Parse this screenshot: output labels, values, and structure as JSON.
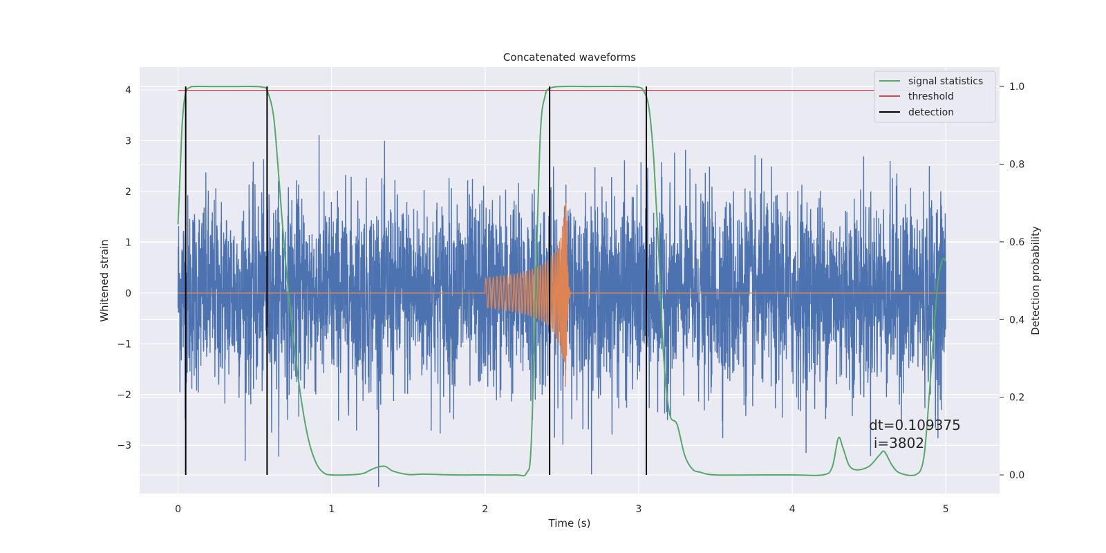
{
  "chart_data": {
    "type": "line",
    "title": "Concatenated waveforms",
    "xlabel": "Time (s)",
    "ylabel": "Whitened strain",
    "ylabel_right": "Detection probability",
    "xlim": [
      -0.25,
      5.35
    ],
    "ylim": [
      -3.95,
      4.45
    ],
    "ylim_right": [
      -0.048,
      1.05
    ],
    "x_ticks": [
      0,
      1,
      2,
      3,
      4,
      5
    ],
    "y_ticks": [
      -3,
      -2,
      -1,
      0,
      1,
      2,
      3,
      4
    ],
    "y_ticks_right": [
      0.0,
      0.2,
      0.4,
      0.6,
      0.8,
      1.0
    ],
    "y_ticks_right_labels": [
      "0.0",
      "0.2",
      "0.4",
      "0.6",
      "0.8",
      "1.0"
    ],
    "grid": true,
    "legend": {
      "placement": "top-right",
      "entries": [
        {
          "name": "signal statistics",
          "color": "#55a868"
        },
        {
          "name": "threshold",
          "color": "#c44e52"
        },
        {
          "name": "detection",
          "color": "#000000"
        }
      ]
    },
    "series": [
      {
        "name": "whitened strain",
        "axis": "left",
        "color": "#4c72b0",
        "x_range": [
          0,
          5
        ],
        "typical_abs_amplitude": 1.5,
        "peak_amplitude": 4.0
      },
      {
        "name": "injected waveform",
        "axis": "left",
        "color": "#dd8452",
        "chirp_start": 2.0,
        "chirp_merger": 2.53,
        "chirp_end": 2.56,
        "start_amplitude": 0.3,
        "peak_amplitude": 1.9
      },
      {
        "name": "signal statistics",
        "axis": "right",
        "color": "#55a868",
        "x": [
          0,
          0.01,
          0.02,
          0.03,
          0.05,
          0.08,
          0.1,
          0.2,
          0.3,
          0.4,
          0.5,
          0.55,
          0.58,
          0.62,
          0.65,
          0.7,
          0.75,
          0.8,
          0.85,
          0.9,
          0.95,
          1.0,
          1.1,
          1.2,
          1.25,
          1.3,
          1.35,
          1.4,
          1.5,
          1.6,
          1.8,
          2.0,
          2.2,
          2.27,
          2.3,
          2.33,
          2.36,
          2.39,
          2.42,
          2.5,
          2.7,
          2.9,
          3.0,
          3.03,
          3.06,
          3.08,
          3.1,
          3.13,
          3.16,
          3.2,
          3.25,
          3.3,
          3.35,
          3.4,
          3.5,
          3.8,
          4.0,
          4.2,
          4.26,
          4.3,
          4.33,
          4.37,
          4.42,
          4.5,
          4.57,
          4.6,
          4.65,
          4.7,
          4.8,
          4.85,
          4.88,
          4.92,
          4.95,
          4.98,
          5.0
        ],
        "y": [
          0.645,
          0.74,
          0.84,
          0.92,
          0.985,
          0.998,
          1.0,
          1.0,
          1.0,
          1.0,
          1.0,
          0.998,
          0.99,
          0.93,
          0.8,
          0.55,
          0.36,
          0.2,
          0.09,
          0.03,
          0.005,
          0.0,
          0.0,
          0.003,
          0.012,
          0.02,
          0.022,
          0.01,
          0.001,
          0.002,
          0.0,
          0.0,
          0.0,
          0.005,
          0.08,
          0.5,
          0.88,
          0.975,
          0.995,
          1.0,
          1.0,
          1.0,
          0.998,
          0.99,
          0.96,
          0.9,
          0.8,
          0.58,
          0.32,
          0.16,
          0.13,
          0.05,
          0.015,
          0.007,
          0.0,
          0.0,
          0.0,
          0.0,
          0.02,
          0.095,
          0.07,
          0.025,
          0.013,
          0.022,
          0.052,
          0.06,
          0.025,
          0.005,
          0.0,
          0.03,
          0.14,
          0.36,
          0.5,
          0.555,
          0.55
        ]
      },
      {
        "name": "threshold",
        "axis": "right",
        "color": "#c44e52",
        "x_range": [
          0,
          5
        ],
        "value": 0.99
      },
      {
        "name": "detection",
        "axis": "right",
        "color": "#000000",
        "x": [
          0.05,
          0.58,
          2.42,
          3.05
        ],
        "range": [
          0,
          1
        ]
      }
    ],
    "annotations": [
      {
        "text": "dt=0.109375",
        "x": 4.5,
        "y": -2.7
      },
      {
        "text": "i=3802",
        "x": 4.53,
        "y": -3.05
      }
    ]
  }
}
